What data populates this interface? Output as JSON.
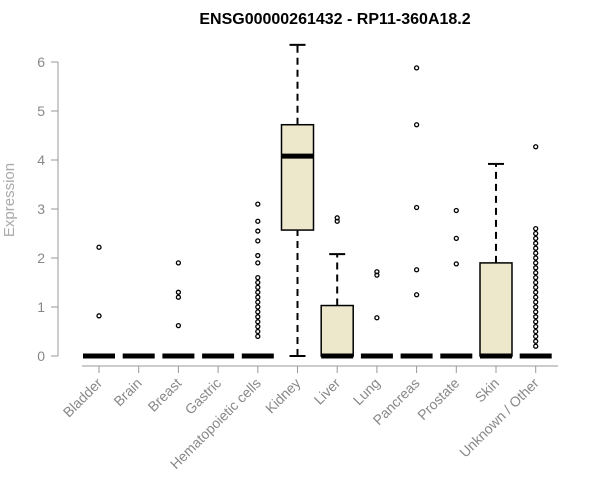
{
  "chart_data": {
    "type": "box",
    "title": "ENSG00000261432 - RP11-360A18.2",
    "xlabel": "",
    "ylabel": "Expression",
    "ylim": [
      0,
      6
    ],
    "yticks": [
      "0",
      "1",
      "2",
      "3",
      "4",
      "5",
      "6"
    ],
    "grid": false,
    "legend": "none",
    "colors": {
      "box_fill": "#ede7cc",
      "outline": "#000000",
      "tick_text": "#888888",
      "ylabel_text": "#aaaaaa"
    },
    "categories": [
      "Bladder",
      "Brain",
      "Breast",
      "Gastric",
      "Hematopoietic cells",
      "Kidney",
      "Liver",
      "Lung",
      "Pancreas",
      "Prostate",
      "Skin",
      "Unknown / Other"
    ],
    "boxes": [
      {
        "name": "Bladder",
        "min": 0,
        "q1": 0,
        "median": 0,
        "q3": 0,
        "max": 0,
        "outliers": [
          2.22,
          0.82
        ]
      },
      {
        "name": "Brain",
        "min": 0,
        "q1": 0,
        "median": 0,
        "q3": 0,
        "max": 0,
        "outliers": []
      },
      {
        "name": "Breast",
        "min": 0,
        "q1": 0,
        "median": 0,
        "q3": 0,
        "max": 0,
        "outliers": [
          1.9,
          1.3,
          1.2,
          0.62
        ]
      },
      {
        "name": "Gastric",
        "min": 0,
        "q1": 0,
        "median": 0,
        "q3": 0,
        "max": 0,
        "outliers": []
      },
      {
        "name": "Hematopoietic cells",
        "min": 0,
        "q1": 0,
        "median": 0,
        "q3": 0,
        "max": 0,
        "outliers": [
          3.1,
          2.75,
          2.55,
          2.35,
          2.05,
          1.9,
          1.6,
          1.5,
          1.4,
          1.3,
          1.2,
          1.1,
          1.0,
          0.9,
          0.8,
          0.7,
          0.6,
          0.5,
          0.4
        ]
      },
      {
        "name": "Kidney",
        "min": 0,
        "q1": 2.57,
        "median": 4.08,
        "q3": 4.72,
        "max": 6.35,
        "outliers": []
      },
      {
        "name": "Liver",
        "min": 0,
        "q1": 0,
        "median": 0,
        "q3": 1.03,
        "max": 2.08,
        "outliers": [
          2.82,
          2.75
        ]
      },
      {
        "name": "Lung",
        "min": 0,
        "q1": 0,
        "median": 0,
        "q3": 0,
        "max": 0,
        "outliers": [
          1.72,
          1.65,
          0.78
        ]
      },
      {
        "name": "Pancreas",
        "min": 0,
        "q1": 0,
        "median": 0,
        "q3": 0,
        "max": 0,
        "outliers": [
          5.88,
          4.72,
          3.03,
          1.76,
          1.25
        ]
      },
      {
        "name": "Prostate",
        "min": 0,
        "q1": 0,
        "median": 0,
        "q3": 0,
        "max": 0,
        "outliers": [
          2.97,
          2.4,
          1.88
        ]
      },
      {
        "name": "Skin",
        "min": 0,
        "q1": 0,
        "median": 0,
        "q3": 1.9,
        "max": 3.92,
        "outliers": []
      },
      {
        "name": "Unknown / Other",
        "min": 0,
        "q1": 0,
        "median": 0,
        "q3": 0,
        "max": 0,
        "outliers": [
          4.27,
          2.6,
          2.5,
          2.4,
          2.3,
          2.2,
          2.1,
          2.0,
          1.9,
          1.8,
          1.7,
          1.6,
          1.5,
          1.4,
          1.3,
          1.2,
          1.1,
          1.0,
          0.9,
          0.8,
          0.7,
          0.6,
          0.5,
          0.4,
          0.3,
          0.2
        ]
      }
    ]
  }
}
